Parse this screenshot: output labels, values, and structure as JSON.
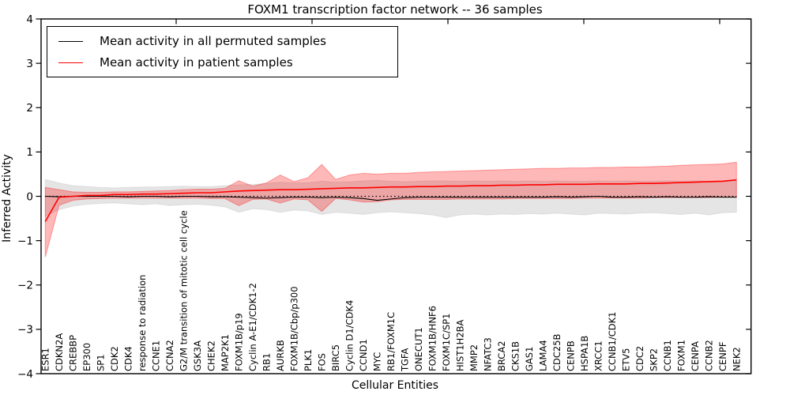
{
  "title": "FOXM1 transcription factor network -- 36 samples",
  "samples": 36,
  "legend": {
    "entries": [
      {
        "label": "Mean activity in all permuted samples",
        "color": "#000000"
      },
      {
        "label": "Mean activity in patient samples",
        "color": "#ff0000"
      }
    ]
  },
  "chart_data": {
    "type": "line",
    "title": "FOXM1 transcription factor network -- 36 samples",
    "xlabel": "Cellular Entities",
    "ylabel": "Inferred Activity",
    "ylim": [
      -4,
      4
    ],
    "yticks": [
      -4,
      -3,
      -2,
      -1,
      0,
      1,
      2,
      3,
      4
    ],
    "grid": false,
    "legend_position": "upper left",
    "zero_line": {
      "y": 0,
      "style": "dotted",
      "color": "#000000"
    },
    "categories": [
      "ESR1",
      "CDKN2A",
      "CREBBP",
      "EP300",
      "SP1",
      "CDK2",
      "CDK4",
      "response to radiation",
      "CCNE1",
      "CCNA2",
      "G2/M transition of mitotic cell cycle",
      "GSK3A",
      "CHEK2",
      "MAP2K1",
      "FOXM1B/p19",
      "Cyclin A-E1/CDK1-2",
      "RB1",
      "AURKB",
      "FOXM1B/Cbp/p300",
      "PLK1",
      "FOS",
      "BIRC5",
      "Cyclin D1/CDK4",
      "CCND1",
      "MYC",
      "RB1/FOXM1C",
      "TGFA",
      "ONECUT1",
      "FOXM1B/HNF6",
      "FOXM1C/SP1",
      "HIST1H2BA",
      "MMP2",
      "NFATC3",
      "BRCA2",
      "CKS1B",
      "GAS1",
      "LAMA4",
      "CDC25B",
      "CENPB",
      "HSPA1B",
      "XRCC1",
      "CCNB1/CDK1",
      "ETV5",
      "CDC2",
      "SKP2",
      "CCNB1",
      "FOXM1",
      "CENPA",
      "CCNB2",
      "CENPF",
      "NEK2"
    ],
    "series": [
      {
        "name": "Mean activity in all permuted samples",
        "color": "#000000",
        "band_color": "#aaaaaa",
        "values": [
          0.0,
          -0.01,
          0.0,
          0.0,
          0.0,
          0.0,
          -0.01,
          0.0,
          0.0,
          -0.01,
          0.0,
          0.0,
          -0.01,
          -0.01,
          -0.02,
          -0.03,
          -0.04,
          -0.03,
          -0.02,
          -0.02,
          -0.03,
          -0.02,
          -0.03,
          -0.05,
          -0.09,
          -0.06,
          -0.03,
          -0.02,
          -0.02,
          -0.02,
          -0.02,
          -0.02,
          -0.02,
          -0.02,
          -0.02,
          -0.02,
          -0.02,
          -0.01,
          -0.02,
          -0.01,
          0.0,
          -0.02,
          -0.02,
          -0.01,
          -0.02,
          -0.01,
          -0.02,
          -0.02,
          -0.01,
          -0.02,
          -0.02
        ],
        "band_upper": [
          0.38,
          0.3,
          0.24,
          0.22,
          0.2,
          0.19,
          0.2,
          0.21,
          0.21,
          0.22,
          0.23,
          0.22,
          0.22,
          0.24,
          0.26,
          0.27,
          0.29,
          0.32,
          0.3,
          0.31,
          0.34,
          0.32,
          0.33,
          0.35,
          0.36,
          0.34,
          0.33,
          0.34,
          0.35,
          0.35,
          0.34,
          0.35,
          0.34,
          0.35,
          0.34,
          0.35,
          0.34,
          0.35,
          0.34,
          0.34,
          0.35,
          0.34,
          0.35,
          0.34,
          0.34,
          0.35,
          0.34,
          0.35,
          0.34,
          0.35,
          0.35
        ],
        "band_lower": [
          -0.45,
          -0.3,
          -0.22,
          -0.18,
          -0.16,
          -0.15,
          -0.17,
          -0.19,
          -0.17,
          -0.21,
          -0.19,
          -0.18,
          -0.2,
          -0.24,
          -0.36,
          -0.28,
          -0.3,
          -0.36,
          -0.31,
          -0.33,
          -0.41,
          -0.36,
          -0.38,
          -0.41,
          -0.37,
          -0.35,
          -0.37,
          -0.39,
          -0.42,
          -0.48,
          -0.42,
          -0.4,
          -0.42,
          -0.4,
          -0.41,
          -0.39,
          -0.4,
          -0.38,
          -0.4,
          -0.42,
          -0.38,
          -0.39,
          -0.4,
          -0.38,
          -0.37,
          -0.39,
          -0.41,
          -0.38,
          -0.42,
          -0.37,
          -0.36
        ]
      },
      {
        "name": "Mean activity in patient samples",
        "color": "#ff0000",
        "band_color": "#ff0000",
        "values": [
          -0.57,
          -0.02,
          0.0,
          0.02,
          0.02,
          0.04,
          0.04,
          0.05,
          0.05,
          0.06,
          0.07,
          0.08,
          0.08,
          0.1,
          0.12,
          0.13,
          0.14,
          0.15,
          0.15,
          0.16,
          0.17,
          0.18,
          0.19,
          0.19,
          0.2,
          0.21,
          0.21,
          0.22,
          0.22,
          0.23,
          0.23,
          0.24,
          0.24,
          0.25,
          0.25,
          0.26,
          0.26,
          0.27,
          0.27,
          0.27,
          0.28,
          0.28,
          0.28,
          0.29,
          0.29,
          0.3,
          0.31,
          0.32,
          0.33,
          0.34,
          0.37
        ],
        "band_upper": [
          0.2,
          0.15,
          0.1,
          0.09,
          0.09,
          0.1,
          0.1,
          0.11,
          0.12,
          0.13,
          0.15,
          0.16,
          0.16,
          0.18,
          0.35,
          0.23,
          0.3,
          0.48,
          0.33,
          0.42,
          0.72,
          0.38,
          0.48,
          0.52,
          0.5,
          0.52,
          0.52,
          0.54,
          0.55,
          0.56,
          0.57,
          0.58,
          0.59,
          0.6,
          0.61,
          0.62,
          0.63,
          0.63,
          0.64,
          0.64,
          0.65,
          0.65,
          0.66,
          0.66,
          0.67,
          0.68,
          0.7,
          0.71,
          0.72,
          0.73,
          0.77
        ],
        "band_lower": [
          -1.37,
          -0.2,
          -0.09,
          -0.06,
          -0.05,
          -0.04,
          -0.04,
          -0.04,
          -0.04,
          -0.04,
          -0.04,
          -0.04,
          -0.05,
          -0.05,
          -0.21,
          -0.07,
          -0.06,
          -0.15,
          -0.06,
          -0.08,
          -0.34,
          -0.05,
          -0.08,
          -0.13,
          -0.12,
          -0.08,
          -0.07,
          -0.07,
          -0.07,
          -0.07,
          -0.06,
          -0.06,
          -0.06,
          -0.06,
          -0.05,
          -0.05,
          -0.05,
          -0.05,
          -0.05,
          -0.04,
          -0.04,
          -0.04,
          -0.04,
          -0.04,
          -0.03,
          -0.03,
          -0.03,
          -0.03,
          -0.03,
          -0.02,
          -0.02
        ]
      }
    ]
  }
}
